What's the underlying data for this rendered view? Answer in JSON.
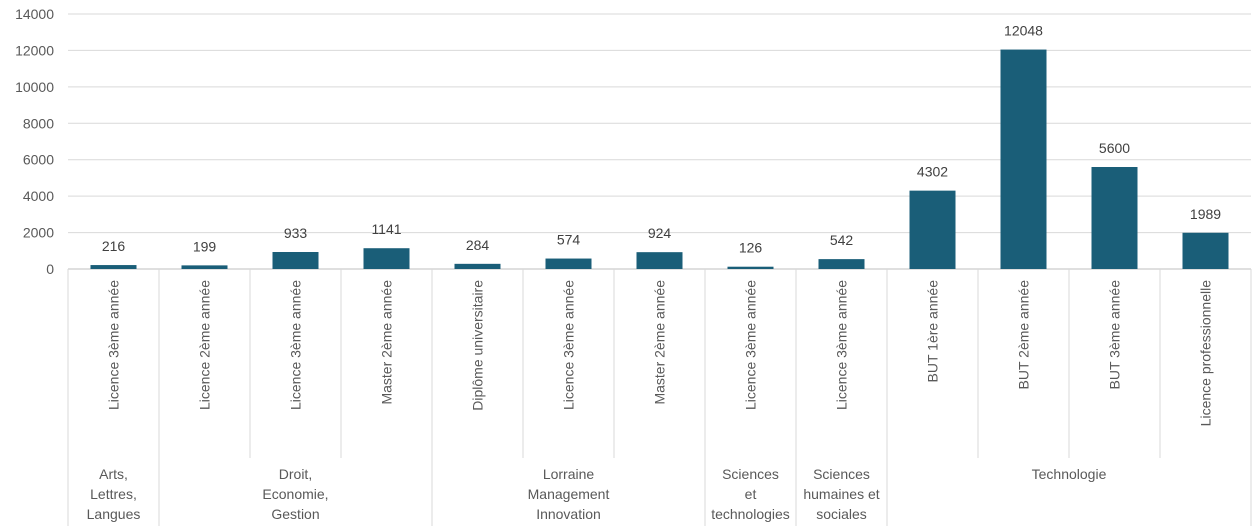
{
  "chart_data": {
    "type": "bar",
    "ylim": [
      0,
      14000
    ],
    "yticks": [
      "0",
      "2000",
      "4000",
      "6000",
      "8000",
      "10000",
      "12000",
      "14000"
    ],
    "grid": true,
    "bar_color": "#1a5e78",
    "categories": [
      "Licence 3ème année",
      "Licence 2ème année",
      "Licence 3ème année",
      "Master 2ème année",
      "Diplôme universitaire",
      "Licence 3ème année",
      "Master 2ème année",
      "Licence 3ème année",
      "Licence 3ème année",
      "BUT 1ère année",
      "BUT 2ème année",
      "BUT 3ème année",
      "Licence professionnelle"
    ],
    "values": [
      216,
      199,
      933,
      1141,
      284,
      574,
      924,
      126,
      542,
      4302,
      12048,
      5600,
      1989
    ],
    "groups": [
      {
        "lines": [
          "Arts,",
          "Lettres,",
          "Langues"
        ],
        "count": 1
      },
      {
        "lines": [
          "Droit,",
          "Economie,",
          "Gestion"
        ],
        "count": 3
      },
      {
        "lines": [
          "Lorraine",
          "Management",
          "Innovation"
        ],
        "count": 3
      },
      {
        "lines": [
          "Sciences",
          "et",
          "technologies"
        ],
        "count": 1
      },
      {
        "lines": [
          "Sciences",
          "humaines et",
          "sociales"
        ],
        "count": 1
      },
      {
        "lines": [
          "Technologie"
        ],
        "count": 4
      }
    ]
  }
}
